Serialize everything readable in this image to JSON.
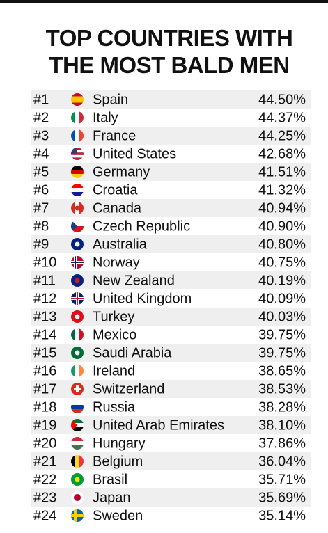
{
  "header": {
    "title": [
      "TOP COUNTRIES WITH",
      "THE MOST BALD MEN"
    ]
  },
  "table": {
    "rows": [
      [
        "#1",
        "Spain",
        "44.50%"
      ],
      [
        "#2",
        "Italy",
        "44.37%"
      ],
      [
        "#3",
        "France",
        "44.25%"
      ],
      [
        "#4",
        "United States",
        "42.68%"
      ],
      [
        "#5",
        "Germany",
        "41.51%"
      ],
      [
        "#6",
        "Croatia",
        "41.32%"
      ],
      [
        "#7",
        "Canada",
        "40.94%"
      ],
      [
        "#8",
        "Czech Republic",
        "40.90%"
      ],
      [
        "#9",
        "Australia",
        "40.80%"
      ],
      [
        "#10",
        "Norway",
        "40.75%"
      ],
      [
        "#11",
        "New Zealand",
        "40.19%"
      ],
      [
        "#12",
        "United Kingdom",
        "40.09%"
      ],
      [
        "#13",
        "Turkey",
        "40.03%"
      ],
      [
        "#14",
        "Mexico",
        "39.75%"
      ],
      [
        "#15",
        "Saudi Arabia",
        "39.75%"
      ],
      [
        "#16",
        "Ireland",
        "38.65%"
      ],
      [
        "#17",
        "Switzerland",
        "38.53%"
      ],
      [
        "#18",
        "Russia",
        "38.28%"
      ],
      [
        "#19",
        "United Arab Emirates",
        "38.10%"
      ],
      [
        "#20",
        "Hungary",
        "37.86%"
      ],
      [
        "#21",
        "Belgium",
        "36.04%"
      ],
      [
        "#22",
        "Brasil",
        "35.71%"
      ],
      [
        "#23",
        "Japan",
        "35.69%"
      ],
      [
        "#24",
        "Sweden",
        "35.14%"
      ]
    ]
  }
}
